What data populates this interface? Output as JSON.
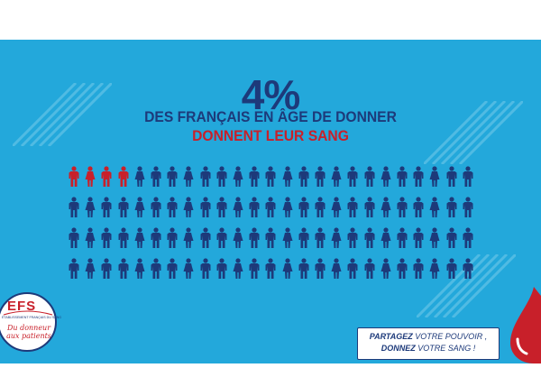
{
  "stat": {
    "percent": "4%",
    "line1": "DES FRANÇAIS EN ÂGE DE DONNER",
    "line2": "DONNENT LEUR SANG"
  },
  "pictogram": {
    "rows": 4,
    "cols": 25,
    "highlighted": 4,
    "highlight_color": "#c8202a",
    "base_color": "#1d3a7a"
  },
  "logo": {
    "letters": "EFS",
    "subtitle": "ÉTABLISSEMENT FRANÇAIS DU SANG",
    "slogan": "Du donneur aux patients"
  },
  "share_box": {
    "line1_bold": "PARTAGEZ",
    "line1_rest": " VOTRE POUVOIR ,",
    "line2_bold": "DONNEZ",
    "line2_rest": " VOTRE SANG !"
  },
  "colors": {
    "background": "#23a8db",
    "navy": "#1d3a7a",
    "red": "#c8202a"
  }
}
